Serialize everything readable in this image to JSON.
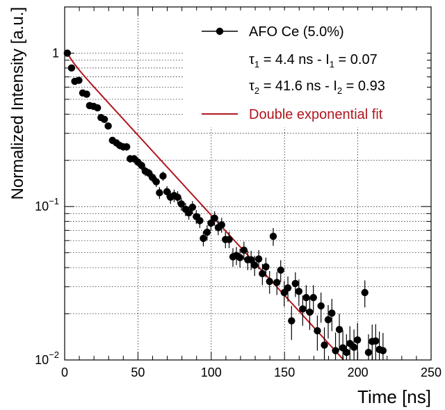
{
  "chart_data": {
    "type": "scatter",
    "xlabel": "Time [ns]",
    "ylabel": "Normalized Intensity [a.u.]",
    "xlim": [
      0,
      250
    ],
    "ylim": [
      0.01,
      2
    ],
    "y_scale": "log",
    "x_tick_labels": [
      "0",
      "50",
      "100",
      "150",
      "200",
      "250"
    ],
    "x_ticks": [
      0,
      50,
      100,
      150,
      200,
      250
    ],
    "y_tick_labels": [
      {
        "value": 1,
        "base": "1",
        "exp": ""
      },
      {
        "value": 0.1,
        "base": "10",
        "exp": "−1"
      },
      {
        "value": 0.01,
        "base": "10",
        "exp": "−2"
      }
    ],
    "grid": true,
    "legend_position": "top-right",
    "legend": {
      "data_label": "AFO Ce (5.0%)",
      "tau1": {
        "tau": "τ",
        "sub_tau": "1",
        "mid": " = 4.4 ns - I",
        "sub_i": "1",
        "end": " = 0.07"
      },
      "tau2": {
        "tau": "τ",
        "sub_tau": "2",
        "mid": " = 41.6 ns - I",
        "sub_i": "2",
        "end": " = 0.93"
      },
      "fit_label": "Double exponential fit"
    },
    "colors": {
      "data": "#000000",
      "fit": "#b0161d"
    },
    "fit": {
      "tau1": 4.4,
      "I1": 0.07,
      "tau2": 41.6,
      "I2": 0.93,
      "t0": 1.8
    },
    "series": [
      {
        "name": "AFO Ce (5.0%)",
        "x": [
          1.8,
          4.7,
          6.9,
          9.7,
          12.3,
          15.0,
          17.0,
          19.8,
          22.4,
          24.8,
          27.1,
          29.7,
          32.6,
          35.3,
          37.6,
          40.0,
          42.3,
          44.7,
          47.4,
          49.9,
          52.5,
          55.0,
          57.5,
          59.8,
          62.5,
          64.7,
          67.1,
          69.8,
          72.2,
          74.7,
          77.1,
          79.6,
          82.5,
          84.7,
          87.2,
          89.8,
          92.2,
          94.6,
          97.2,
          99.8,
          102.3,
          104.8,
          107.1,
          109.7,
          112.2,
          114.8,
          117.2,
          119.6,
          122.3,
          124.9,
          127.2,
          129.6,
          132.4,
          134.9,
          137.3,
          139.8,
          142.3,
          144.8,
          147.4,
          149.8,
          152.3,
          154.8,
          157.4,
          159.8,
          162.4,
          164.8,
          167.2,
          169.7,
          172.4,
          174.9,
          177.2,
          179.8,
          182.3,
          184.8,
          187.4,
          189.8,
          192.3,
          194.6,
          197.4,
          199.8,
          204.8,
          207.3,
          209.8,
          212.2,
          214.7,
          217.2
        ],
        "y": [
          1.0,
          0.8,
          0.655,
          0.665,
          0.55,
          0.54,
          0.455,
          0.45,
          0.44,
          0.38,
          0.37,
          0.335,
          0.27,
          0.26,
          0.25,
          0.245,
          0.245,
          0.205,
          0.205,
          0.195,
          0.185,
          0.17,
          0.165,
          0.155,
          0.145,
          0.123,
          0.158,
          0.125,
          0.115,
          0.118,
          0.115,
          0.104,
          0.096,
          0.091,
          0.099,
          0.086,
          0.081,
          0.062,
          0.068,
          0.078,
          0.084,
          0.073,
          0.076,
          0.061,
          0.061,
          0.047,
          0.048,
          0.0465,
          0.052,
          0.045,
          0.045,
          0.0415,
          0.0455,
          0.0365,
          0.0405,
          0.0325,
          0.064,
          0.032,
          0.0385,
          0.0275,
          0.0295,
          0.018,
          0.0315,
          0.028,
          0.0215,
          0.0255,
          0.0205,
          0.0255,
          0.0155,
          0.0225,
          0.0125,
          0.0183,
          0.0202,
          0.0115,
          0.0158,
          0.012,
          0.0112,
          0.0128,
          0.0121,
          0.0135,
          0.0275,
          0.0112,
          0.0132,
          0.0133,
          0.0117,
          0.0115
        ],
        "err": [
          0.05,
          0.03,
          0.025,
          0.025,
          0.02,
          0.02,
          0.018,
          0.018,
          0.018,
          0.016,
          0.016,
          0.015,
          0.014,
          0.014,
          0.014,
          0.014,
          0.014,
          0.012,
          0.012,
          0.012,
          0.012,
          0.012,
          0.011,
          0.011,
          0.011,
          0.011,
          0.011,
          0.011,
          0.011,
          0.011,
          0.011,
          0.01,
          0.0095,
          0.009,
          0.0095,
          0.009,
          0.0085,
          0.007,
          0.0075,
          0.0085,
          0.009,
          0.008,
          0.0085,
          0.0075,
          0.0075,
          0.0065,
          0.0065,
          0.0065,
          0.007,
          0.0065,
          0.0065,
          0.0062,
          0.0065,
          0.0058,
          0.006,
          0.0055,
          0.0085,
          0.0055,
          0.0062,
          0.0052,
          0.0055,
          0.0045,
          0.0058,
          0.0055,
          0.0048,
          0.0052,
          0.0048,
          0.0052,
          0.004,
          0.005,
          0.0038,
          0.0045,
          0.0048,
          0.0036,
          0.0042,
          0.0036,
          0.0035,
          0.0038,
          0.0037,
          0.0039,
          0.0055,
          0.0035,
          0.0038,
          0.0038,
          0.0036,
          0.0035
        ]
      }
    ]
  }
}
